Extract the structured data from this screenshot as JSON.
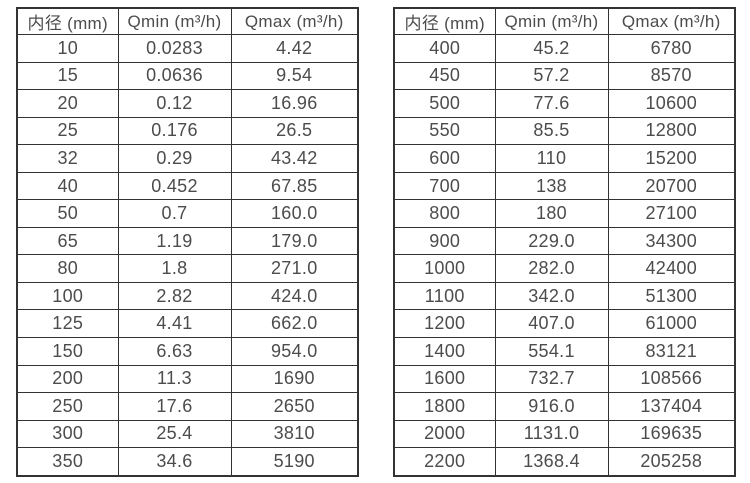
{
  "style": {
    "border_color": "#333333",
    "text_color": "#4c4c4c",
    "background_color": "#ffffff"
  },
  "tables": [
    {
      "title": "flow-rate-table-small-diameters",
      "headers": [
        "内径 (mm)",
        "Qmin (m³/h)",
        "Qmax (m³/h)"
      ],
      "rows": [
        [
          "10",
          "0.0283",
          "4.42"
        ],
        [
          "15",
          "0.0636",
          "9.54"
        ],
        [
          "20",
          "0.12",
          "16.96"
        ],
        [
          "25",
          "0.176",
          "26.5"
        ],
        [
          "32",
          "0.29",
          "43.42"
        ],
        [
          "40",
          "0.452",
          "67.85"
        ],
        [
          "50",
          "0.7",
          "160.0"
        ],
        [
          "65",
          "1.19",
          "179.0"
        ],
        [
          "80",
          "1.8",
          "271.0"
        ],
        [
          "100",
          "2.82",
          "424.0"
        ],
        [
          "125",
          "4.41",
          "662.0"
        ],
        [
          "150",
          "6.63",
          "954.0"
        ],
        [
          "200",
          "11.3",
          "1690"
        ],
        [
          "250",
          "17.6",
          "2650"
        ],
        [
          "300",
          "25.4",
          "3810"
        ],
        [
          "350",
          "34.6",
          "5190"
        ]
      ]
    },
    {
      "title": "flow-rate-table-large-diameters",
      "headers": [
        "内径 (mm)",
        "Qmin (m³/h)",
        "Qmax (m³/h)"
      ],
      "rows": [
        [
          "400",
          "45.2",
          "6780"
        ],
        [
          "450",
          "57.2",
          "8570"
        ],
        [
          "500",
          "77.6",
          "10600"
        ],
        [
          "550",
          "85.5",
          "12800"
        ],
        [
          "600",
          "110",
          "15200"
        ],
        [
          "700",
          "138",
          "20700"
        ],
        [
          "800",
          "180",
          "27100"
        ],
        [
          "900",
          "229.0",
          "34300"
        ],
        [
          "1000",
          "282.0",
          "42400"
        ],
        [
          "1100",
          "342.0",
          "51300"
        ],
        [
          "1200",
          "407.0",
          "61000"
        ],
        [
          "1400",
          "554.1",
          "83121"
        ],
        [
          "1600",
          "732.7",
          "108566"
        ],
        [
          "1800",
          "916.0",
          "137404"
        ],
        [
          "2000",
          "1131.0",
          "169635"
        ],
        [
          "2200",
          "1368.4",
          "205258"
        ]
      ]
    }
  ]
}
